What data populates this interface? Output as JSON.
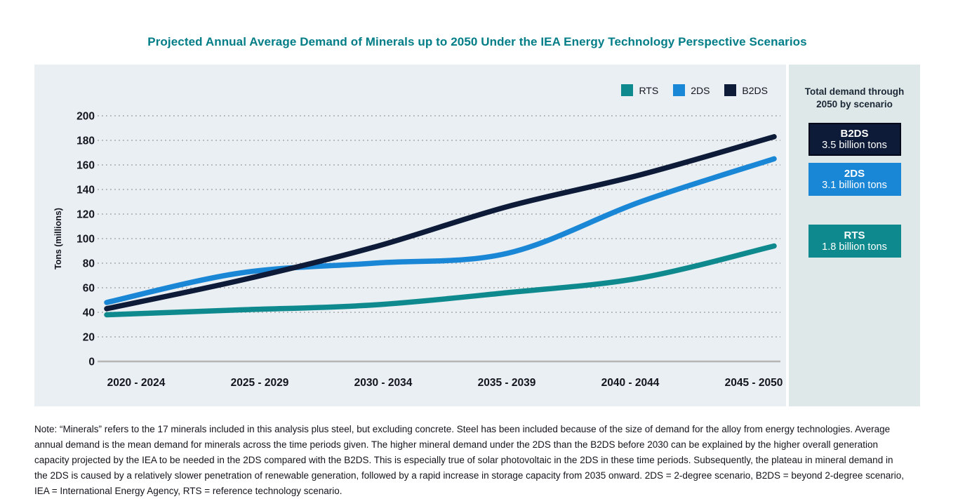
{
  "title": "Projected Annual Average Demand of Minerals up to 2050 Under the IEA Energy Technology Perspective Scenarios",
  "chart_data": {
    "type": "line",
    "title": "Projected Annual Average Demand of Minerals up to 2050 Under the IEA Energy Technology Perspective Scenarios",
    "categories": [
      "2020 - 2024",
      "2025 - 2029",
      "2030 - 2034",
      "2035 - 2039",
      "2040 - 2044",
      "2045 - 2050"
    ],
    "series": [
      {
        "name": "RTS",
        "color": "#0E8A8E",
        "values": [
          38,
          42,
          46,
          56,
          68,
          94
        ]
      },
      {
        "name": "2DS",
        "color": "#1A86D6",
        "values": [
          48,
          72,
          80,
          88,
          130,
          165
        ]
      },
      {
        "name": "B2DS",
        "color": "#0D1B38",
        "values": [
          43,
          66,
          93,
          126,
          152,
          183
        ]
      }
    ],
    "xlabel": "",
    "ylabel": "Tons (millions)",
    "ylim": [
      0,
      200
    ],
    "ytick_step": 20,
    "grid": "dotted horizontal gridlines, solid baseline at 0",
    "legend_position": "top-right"
  },
  "panel": {
    "heading": "Total demand through 2050 by scenario",
    "boxes": [
      {
        "label": "B2DS",
        "value": "3.5 billion tons",
        "color": "#0D1B38"
      },
      {
        "label": "2DS",
        "value": "3.1 billion tons",
        "color": "#1A86D6"
      },
      {
        "label": "RTS",
        "value": "1.8 billion tons",
        "color": "#0E8A8E"
      }
    ]
  },
  "note": "Note: “Minerals” refers to the 17 minerals included in this analysis plus steel, but excluding concrete. Steel has been included because of the size of demand for the alloy from energy technologies. Average annual demand is the mean demand for minerals across the time periods given. The higher mineral demand under the 2DS than the B2DS before 2030 can be explained by the higher overall generation capacity projected by the IEA to be needed in the 2DS compared with the B2DS. This is especially true of solar photovoltaic in the 2DS in these time periods. Subsequently, the plateau in mineral demand in the 2DS is caused by a relatively slower penetration of renewable generation, followed by a rapid increase in storage capacity from 2035 onward. 2DS = 2-degree scenario, B2DS = beyond 2-degree scenario, IEA = International Energy Agency, RTS = reference technology scenario.",
  "colors": {
    "title_text": "#007D87",
    "chart_background": "#E9EFF2",
    "panel_background": "#DEE8E9",
    "gridline": "#A3A3A3",
    "axis_baseline": "#B5B5B5",
    "axis_text": "#15151F",
    "note_text": "#14141C"
  }
}
